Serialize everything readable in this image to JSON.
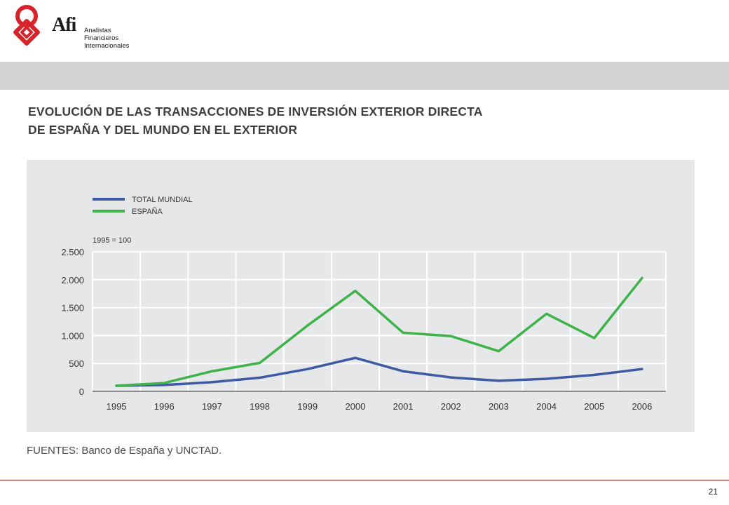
{
  "header": {
    "brand": "Afi",
    "brand_lines": [
      "Analistas",
      "Financieros",
      "Internacionales"
    ]
  },
  "title_lines": [
    "EVOLUCIÓN DE LAS TRANSACCIONES DE INVERSIÓN EXTERIOR DIRECTA",
    "DE ESPAÑA Y DEL MUNDO EN EL EXTERIOR"
  ],
  "source": "FUENTES: Banco de España y UNCTAD.",
  "page_number": "21",
  "colors": {
    "total_mundial": "#3d5aa3",
    "espana": "#3fb34a",
    "logo": "#d8232a",
    "panel": "#e6e7e9"
  },
  "chart_data": {
    "type": "line",
    "title": "EVOLUCIÓN DE LAS TRANSACCIONES DE INVERSIÓN EXTERIOR DIRECTA DE ESPAÑA Y DEL MUNDO EN EL EXTERIOR",
    "unit_note": "1995 = 100",
    "categories": [
      "1995",
      "1996",
      "1997",
      "1998",
      "1999",
      "2000",
      "2001",
      "2002",
      "2003",
      "2004",
      "2005",
      "2006"
    ],
    "yticks": [
      0,
      500,
      1000,
      1500,
      2000,
      2500
    ],
    "ytick_labels": [
      "0",
      "500",
      "1.000",
      "1.500",
      "2.000",
      "2.500"
    ],
    "ylim": [
      0,
      2500
    ],
    "grid": true,
    "legend_position": "top-left",
    "series": [
      {
        "name": "TOTAL MUNDIAL",
        "values": [
          100,
          115,
          165,
          245,
          400,
          600,
          360,
          250,
          190,
          225,
          295,
          400
        ]
      },
      {
        "name": "ESPAÑA",
        "values": [
          100,
          150,
          360,
          510,
          1180,
          1800,
          1050,
          990,
          720,
          1390,
          955,
          2030
        ]
      }
    ]
  }
}
